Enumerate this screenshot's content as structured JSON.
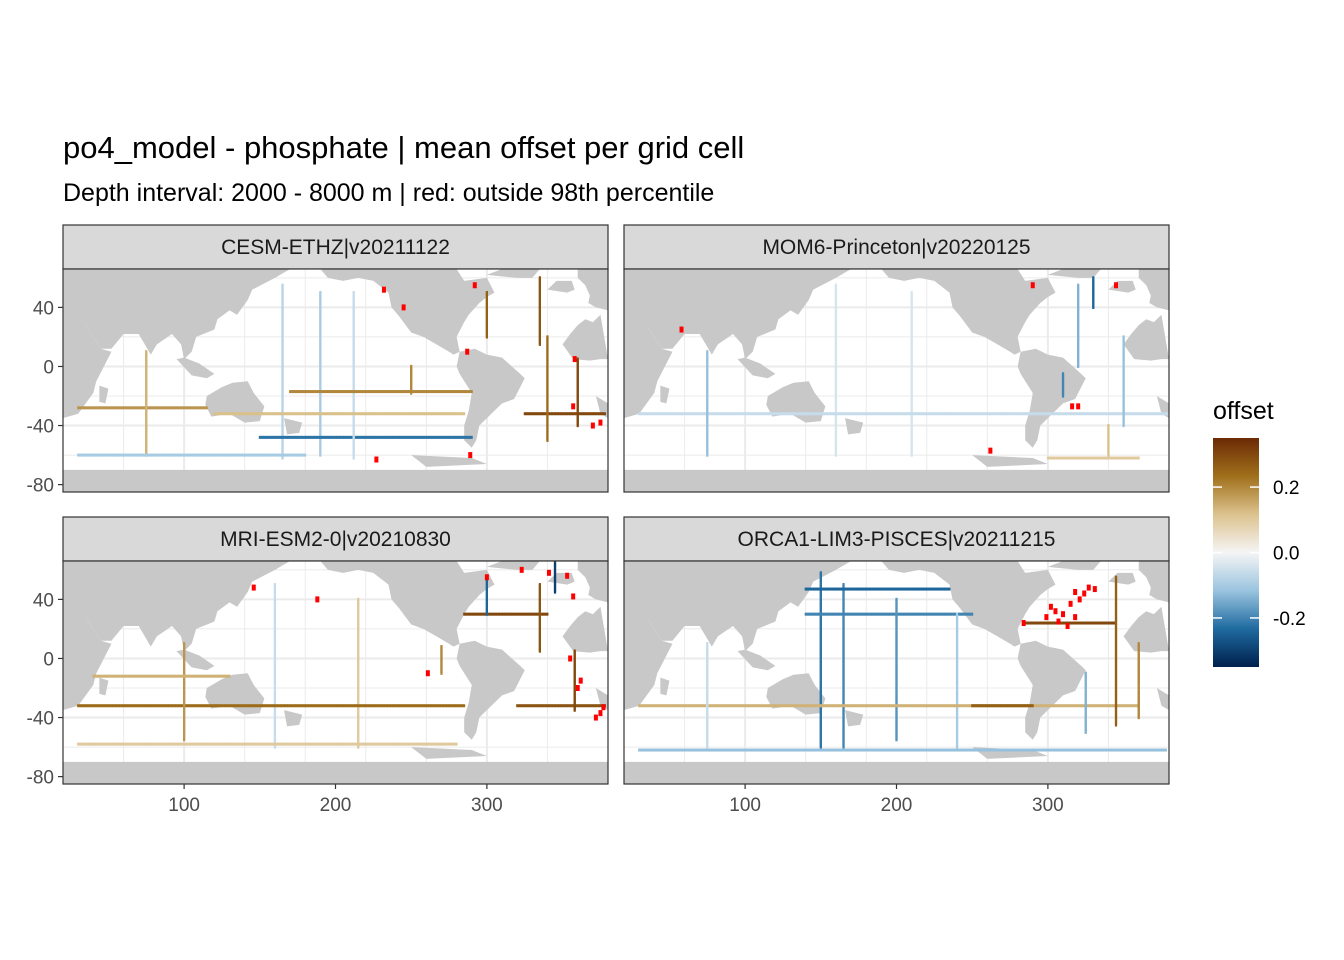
{
  "chart_data": {
    "type": "heatmap",
    "title": "po4_model - phosphate  | mean offset per grid cell",
    "subtitle": "Depth interval: 2000 - 8000 m | red: outside 98th percentile",
    "xlabel": "",
    "ylabel": "",
    "xlim": [
      20,
      380
    ],
    "ylim": [
      -85,
      66
    ],
    "x_ticks": [
      100,
      200,
      300
    ],
    "y_ticks": [
      -80,
      -40,
      0,
      40
    ],
    "legend": {
      "title": "offset",
      "limits": [
        -0.35,
        0.35
      ],
      "ticks": [
        {
          "value": 0.2,
          "label": "0.2"
        },
        {
          "value": 0.0,
          "label": "0.0"
        },
        {
          "value": -0.2,
          "label": "-0.2"
        }
      ],
      "colors": [
        "#00204d",
        "#1f6aa0",
        "#9ac4df",
        "#f5f5f5",
        "#dcc28e",
        "#a0701b",
        "#6b2a05"
      ],
      "placement": "right"
    },
    "outlier_color": "#ff0000",
    "land_color": "#c8c8c8",
    "panels": [
      {
        "name": "CESM-ETHZ|v20211122",
        "lines": [
          {
            "lon": 165,
            "lat1": -62,
            "lat2": 55,
            "v": -0.08
          },
          {
            "lon": 190,
            "lat1": -60,
            "lat2": 50,
            "v": -0.1
          },
          {
            "lon": 170,
            "lat": -48,
            "lon1": 150,
            "lon2": 290,
            "v": -0.22
          },
          {
            "lon": 212,
            "lat1": -62,
            "lat2": 50,
            "v": -0.06
          },
          {
            "lon": 250,
            "lat1": -18,
            "lat2": 0,
            "v": 0.2
          },
          {
            "lat": -17,
            "lon1": 170,
            "lon2": 290,
            "v": 0.2
          },
          {
            "lat": -32,
            "lon1": 120,
            "lon2": 285,
            "v": 0.12
          },
          {
            "lat": -32,
            "lon1": 325,
            "lon2": 378,
            "v": 0.3
          },
          {
            "lon": 340,
            "lat1": -50,
            "lat2": 20,
            "v": 0.24
          },
          {
            "lon": 335,
            "lat1": 15,
            "lat2": 60,
            "v": 0.28
          },
          {
            "lon": 360,
            "lat1": -40,
            "lat2": 5,
            "v": 0.3
          },
          {
            "lon": 300,
            "lat1": 20,
            "lat2": 50,
            "v": 0.26
          },
          {
            "lat": -28,
            "lon1": 30,
            "lon2": 115,
            "v": 0.18
          },
          {
            "lon": 75,
            "lat1": -60,
            "lat2": 10,
            "v": 0.14
          },
          {
            "lat": -60,
            "lon1": 30,
            "lon2": 180,
            "v": -0.1
          }
        ],
        "outliers": [
          {
            "lon": 292,
            "lat": 55
          },
          {
            "lon": 232,
            "lat": 52
          },
          {
            "lon": 357,
            "lat": -27
          },
          {
            "lon": 370,
            "lat": -40
          },
          {
            "lon": 375,
            "lat": -38
          },
          {
            "lon": 358,
            "lat": 5
          },
          {
            "lon": 287,
            "lat": 10
          },
          {
            "lon": 245,
            "lat": 40
          },
          {
            "lon": 227,
            "lat": -63
          },
          {
            "lon": 289,
            "lat": -60
          }
        ]
      },
      {
        "name": "MOM6-Princeton|v20220125",
        "lines": [
          {
            "lon": 160,
            "lat1": -60,
            "lat2": 55,
            "v": -0.04
          },
          {
            "lon": 210,
            "lat1": -60,
            "lat2": 50,
            "v": -0.04
          },
          {
            "lat": -32,
            "lon1": 30,
            "lon2": 380,
            "v": -0.06
          },
          {
            "lon": 330,
            "lat1": 40,
            "lat2": 60,
            "v": -0.24
          },
          {
            "lon": 320,
            "lat1": 0,
            "lat2": 55,
            "v": -0.14
          },
          {
            "lon": 350,
            "lat1": -40,
            "lat2": 20,
            "v": -0.12
          },
          {
            "lon": 340,
            "lat1": -60,
            "lat2": -40,
            "v": 0.12
          },
          {
            "lat": -62,
            "lon1": 300,
            "lon2": 360,
            "v": 0.1
          },
          {
            "lon": 75,
            "lat1": -60,
            "lat2": 10,
            "v": -0.12
          },
          {
            "lon": 310,
            "lat1": -20,
            "lat2": -5,
            "v": -0.2
          }
        ],
        "outliers": [
          {
            "lon": 58,
            "lat": 25
          },
          {
            "lon": 316,
            "lat": -27
          },
          {
            "lon": 320,
            "lat": -27
          },
          {
            "lon": 290,
            "lat": 55
          },
          {
            "lon": 345,
            "lat": 55
          },
          {
            "lon": 262,
            "lat": -57
          }
        ]
      },
      {
        "name": "MRI-ESM2-0|v20210830",
        "lines": [
          {
            "lon": 160,
            "lat1": -60,
            "lat2": 50,
            "v": -0.06
          },
          {
            "lon": 215,
            "lat1": -60,
            "lat2": 40,
            "v": 0.1
          },
          {
            "lat": -32,
            "lon1": 30,
            "lon2": 285,
            "v": 0.24
          },
          {
            "lat": -32,
            "lon1": 320,
            "lon2": 378,
            "v": 0.28
          },
          {
            "lat": 30,
            "lon1": 285,
            "lon2": 340,
            "v": 0.3
          },
          {
            "lon": 358,
            "lat1": -35,
            "lat2": 5,
            "v": 0.3
          },
          {
            "lon": 335,
            "lat1": 5,
            "lat2": 50,
            "v": 0.28
          },
          {
            "lon": 270,
            "lat1": -10,
            "lat2": 8,
            "v": 0.2
          },
          {
            "lon": 100,
            "lat1": -55,
            "lat2": 10,
            "v": 0.18
          },
          {
            "lat": -12,
            "lon1": 40,
            "lon2": 130,
            "v": 0.14
          },
          {
            "lat": -58,
            "lon1": 30,
            "lon2": 280,
            "v": 0.1
          },
          {
            "lon": 300,
            "lat1": 30,
            "lat2": 55,
            "v": -0.24
          },
          {
            "lon": 345,
            "lat1": 45,
            "lat2": 65,
            "v": -0.3
          }
        ],
        "outliers": [
          {
            "lon": 375,
            "lat": -37
          },
          {
            "lon": 377,
            "lat": -33
          },
          {
            "lon": 372,
            "lat": -40
          },
          {
            "lon": 360,
            "lat": -20
          },
          {
            "lon": 362,
            "lat": -15
          },
          {
            "lon": 355,
            "lat": 0
          },
          {
            "lon": 323,
            "lat": 60
          },
          {
            "lon": 341,
            "lat": 58
          },
          {
            "lon": 353,
            "lat": 56
          },
          {
            "lon": 300,
            "lat": 55
          },
          {
            "lon": 357,
            "lat": 42
          },
          {
            "lon": 261,
            "lat": -10
          },
          {
            "lon": 188,
            "lat": 40
          },
          {
            "lon": 146,
            "lat": 48
          }
        ]
      },
      {
        "name": "ORCA1-LIM3-PISCES|v20211215",
        "lines": [
          {
            "lon": 150,
            "lat1": -60,
            "lat2": 58,
            "v": -0.22
          },
          {
            "lon": 165,
            "lat1": -60,
            "lat2": 50,
            "v": -0.2
          },
          {
            "lat": 30,
            "lon1": 140,
            "lon2": 250,
            "v": -0.2
          },
          {
            "lat": 47,
            "lon1": 140,
            "lon2": 235,
            "v": -0.24
          },
          {
            "lon": 200,
            "lat1": -55,
            "lat2": 40,
            "v": -0.18
          },
          {
            "lon": 240,
            "lat1": -60,
            "lat2": 30,
            "v": -0.1
          },
          {
            "lat": 24,
            "lon1": 285,
            "lon2": 345,
            "v": 0.3
          },
          {
            "lat": -32,
            "lon1": 30,
            "lon2": 360,
            "v": 0.14
          },
          {
            "lat": -32,
            "lon1": 250,
            "lon2": 290,
            "v": 0.26
          },
          {
            "lon": 345,
            "lat1": -45,
            "lat2": 55,
            "v": 0.26
          },
          {
            "lon": 360,
            "lat1": -40,
            "lat2": 10,
            "v": 0.2
          },
          {
            "lon": 75,
            "lat1": -60,
            "lat2": 10,
            "v": -0.06
          },
          {
            "lat": -62,
            "lon1": 30,
            "lon2": 378,
            "v": -0.12
          },
          {
            "lon": 325,
            "lat1": -50,
            "lat2": -10,
            "v": -0.14
          }
        ],
        "outliers": [
          {
            "lon": 302,
            "lat": 35
          },
          {
            "lon": 305,
            "lat": 32
          },
          {
            "lon": 307,
            "lat": 25
          },
          {
            "lon": 310,
            "lat": 30
          },
          {
            "lon": 313,
            "lat": 22
          },
          {
            "lon": 315,
            "lat": 37
          },
          {
            "lon": 318,
            "lat": 45
          },
          {
            "lon": 321,
            "lat": 40
          },
          {
            "lon": 324,
            "lat": 44
          },
          {
            "lon": 299,
            "lat": 28
          },
          {
            "lon": 318,
            "lat": 28
          },
          {
            "lon": 327,
            "lat": 48
          },
          {
            "lon": 331,
            "lat": 47
          },
          {
            "lon": 284,
            "lat": 24
          }
        ]
      }
    ]
  }
}
